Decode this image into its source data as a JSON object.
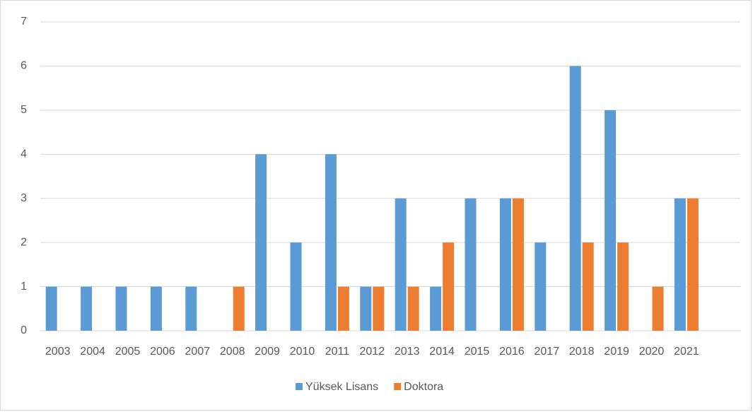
{
  "chart_data": {
    "type": "bar",
    "categories": [
      "2003",
      "2004",
      "2005",
      "2006",
      "2007",
      "2008",
      "2009",
      "2010",
      "2011",
      "2012",
      "2013",
      "2014",
      "2015",
      "2016",
      "2017",
      "2018",
      "2019",
      "2020",
      "2021"
    ],
    "series": [
      {
        "name": "Yüksek Lisans",
        "color": "#5b9bd5",
        "values": [
          1,
          1,
          1,
          1,
          1,
          0,
          4,
          2,
          4,
          1,
          3,
          1,
          3,
          3,
          2,
          6,
          5,
          0,
          3
        ]
      },
      {
        "name": "Doktora",
        "color": "#ed7d31",
        "values": [
          0,
          0,
          0,
          0,
          0,
          1,
          0,
          0,
          1,
          1,
          1,
          2,
          0,
          3,
          0,
          2,
          2,
          1,
          3
        ]
      }
    ],
    "ylim": [
      0,
      7
    ],
    "yticks": [
      0,
      1,
      2,
      3,
      4,
      5,
      6,
      7
    ],
    "grid": true,
    "legend": "bottom"
  }
}
